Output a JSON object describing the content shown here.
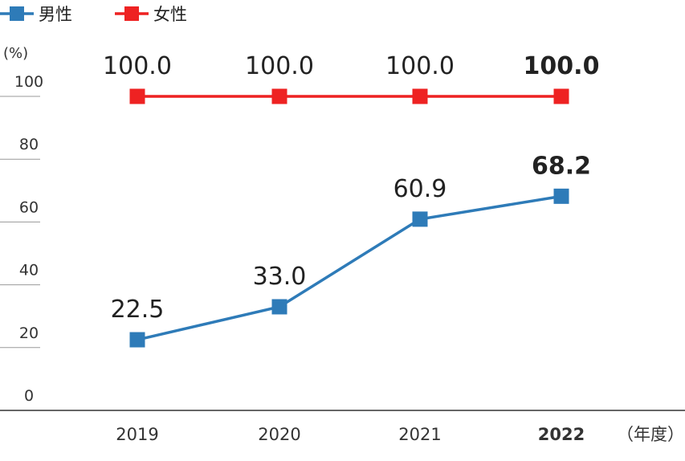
{
  "chart_data": {
    "type": "line",
    "categories": [
      "2019",
      "2020",
      "2021",
      "2022"
    ],
    "highlight_category": "2022",
    "series": [
      {
        "name": "男性",
        "values": [
          22.5,
          33.0,
          60.9,
          68.2
        ],
        "labels": [
          "22.5",
          "33.0",
          "60.9",
          "68.2"
        ],
        "color": "#2e7bb8"
      },
      {
        "name": "女性",
        "values": [
          100.0,
          100.0,
          100.0,
          100.0
        ],
        "labels": [
          "100.0",
          "100.0",
          "100.0",
          "100.0"
        ],
        "color": "#ee2222"
      }
    ],
    "yticks": [
      "0",
      "20",
      "40",
      "60",
      "80",
      "100"
    ],
    "ylim": [
      0,
      100
    ],
    "y_unit": "(%)",
    "x_unit": "（年度）",
    "legend": "top-left",
    "grid": false
  }
}
